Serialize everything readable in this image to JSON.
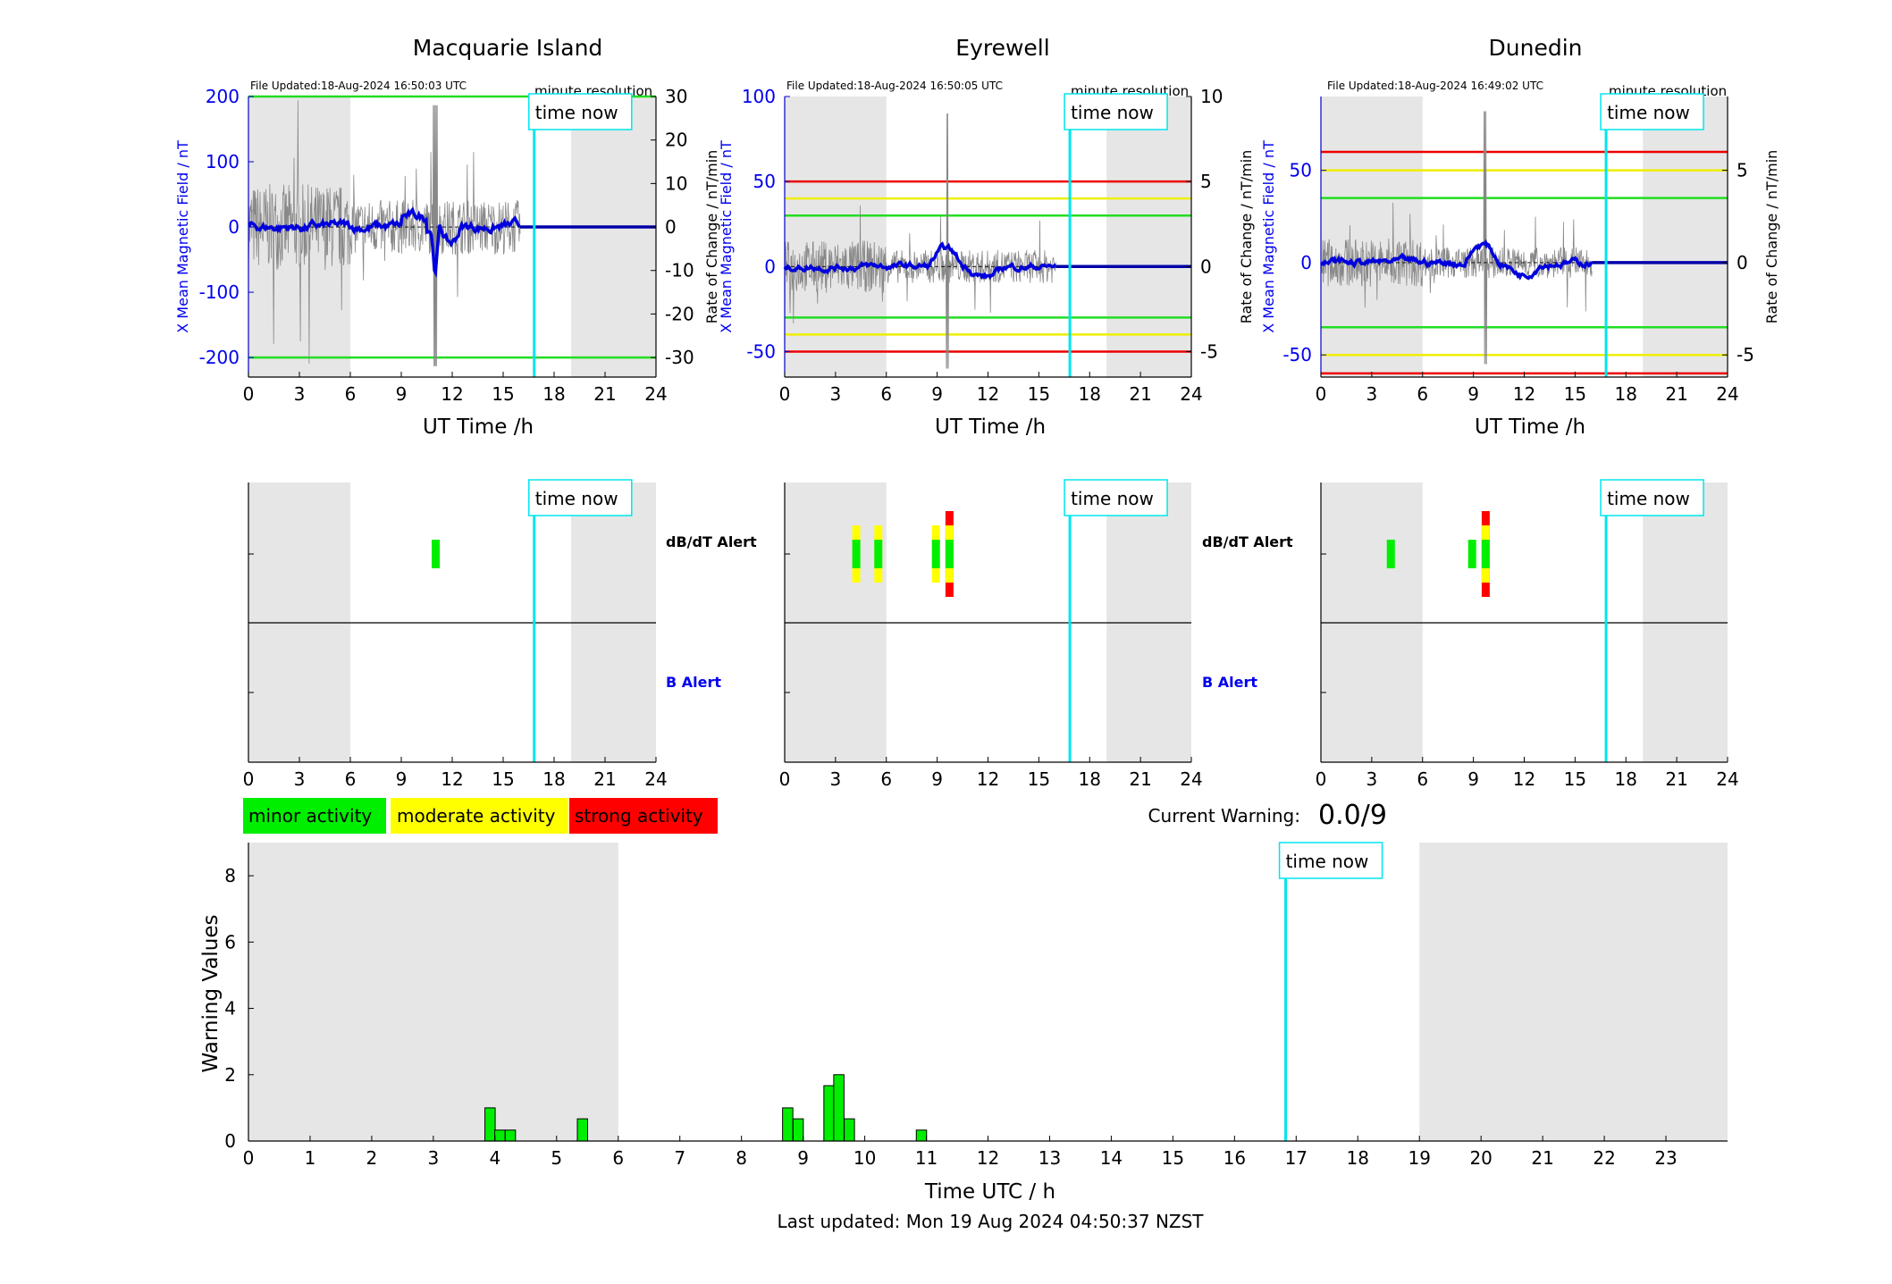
{
  "stations": [
    {
      "name": "Macquarie Island",
      "file_updated": "File Updated:18-Aug-2024 16:50:03 UTC",
      "resolution": "minute resolution",
      "left_ylabel": "X Mean Magnetic Field / nT",
      "right_ylabel": "Rate of Change / nT/min",
      "left_yticks": [
        "200",
        "100",
        "0",
        "-100",
        "-200"
      ],
      "right_yticks": [
        "30",
        "20",
        "10",
        "0",
        "-10",
        "-20",
        "-30"
      ],
      "left_ylim": [
        -230,
        200
      ],
      "right_ylim": [
        -34.5,
        30
      ],
      "thresholds": [
        {
          "value": 200,
          "color": "#22dd22"
        },
        {
          "value": -200,
          "color": "#22dd22"
        }
      ]
    },
    {
      "name": "Eyrewell",
      "file_updated": "File Updated:18-Aug-2024 16:50:05 UTC",
      "resolution": "minute resolution",
      "left_ylabel": "X Mean Magnetic Field / nT",
      "right_ylabel": "Rate of Change / nT/min",
      "left_yticks": [
        "100",
        "50",
        "0",
        "-50"
      ],
      "right_yticks": [
        "10",
        "5",
        "0",
        "-5"
      ],
      "left_ylim": [
        -65,
        100
      ],
      "right_ylim": [
        -6.5,
        10
      ],
      "thresholds": [
        {
          "value": 50,
          "color": "#ee0000"
        },
        {
          "value": 40,
          "color": "#eeee00"
        },
        {
          "value": 30,
          "color": "#22dd22"
        },
        {
          "value": -30,
          "color": "#22dd22"
        },
        {
          "value": -40,
          "color": "#eeee00"
        },
        {
          "value": -50,
          "color": "#ee0000"
        }
      ]
    },
    {
      "name": "Dunedin",
      "file_updated": "File Updated:18-Aug-2024 16:49:02 UTC",
      "resolution": "minute resolution",
      "left_ylabel": "X Mean Magnetic Field / nT",
      "right_ylabel": "Rate of Change / nT/min",
      "left_yticks": [
        "50",
        "0",
        "-50"
      ],
      "right_yticks": [
        "5",
        "0",
        "-5"
      ],
      "left_ylim": [
        -62,
        90
      ],
      "right_ylim": [
        -6.2,
        9
      ],
      "thresholds": [
        {
          "value": 60,
          "color": "#ee0000"
        },
        {
          "value": 50,
          "color": "#eeee00"
        },
        {
          "value": 35,
          "color": "#22dd22"
        },
        {
          "value": -35,
          "color": "#22dd22"
        },
        {
          "value": -50,
          "color": "#eeee00"
        },
        {
          "value": -60,
          "color": "#ee0000"
        }
      ]
    }
  ],
  "time_axis": {
    "label": "UT Time /h",
    "ticks": [
      "0",
      "3",
      "6",
      "9",
      "12",
      "15",
      "18",
      "21",
      "24"
    ],
    "xlim": [
      0,
      24
    ]
  },
  "time_now": {
    "label": "time now",
    "hour": 16.83
  },
  "night_shading": [
    [
      0,
      6
    ],
    [
      19,
      24
    ]
  ],
  "alert_panels": {
    "dbdt_label": "dB/dT Alert",
    "b_label": "B Alert",
    "stations": [
      {
        "bars": [
          {
            "hour": 11.0,
            "level": "minor"
          }
        ]
      },
      {
        "bars": [
          {
            "hour": 4.2,
            "level": "moderate"
          },
          {
            "hour": 5.5,
            "level": "moderate"
          },
          {
            "hour": 8.9,
            "level": "moderate"
          },
          {
            "hour": 9.7,
            "level": "strong"
          }
        ]
      },
      {
        "bars": [
          {
            "hour": 4.1,
            "level": "minor"
          },
          {
            "hour": 8.9,
            "level": "minor"
          },
          {
            "hour": 9.7,
            "level": "strong"
          }
        ]
      }
    ]
  },
  "legend": [
    {
      "label": "minor activity",
      "color": "#00ee00"
    },
    {
      "label": "moderate activity",
      "color": "#ffff00"
    },
    {
      "label": "strong activity",
      "color": "#ff0000"
    }
  ],
  "current_warning": {
    "label": "Current Warning:",
    "value": "0.0/9"
  },
  "chart_data": {
    "type": "bar",
    "ylabel": "Warning Values",
    "xlabel": "Time UTC / h",
    "xlim": [
      0,
      24
    ],
    "ylim": [
      0,
      9
    ],
    "xticks": [
      "0",
      "1",
      "2",
      "3",
      "4",
      "5",
      "6",
      "7",
      "8",
      "9",
      "10",
      "11",
      "12",
      "13",
      "14",
      "15",
      "16",
      "17",
      "18",
      "19",
      "20",
      "21",
      "22",
      "23"
    ],
    "yticks": [
      "0",
      "2",
      "4",
      "6",
      "8"
    ],
    "bar_width_h": 0.1667,
    "x": [
      3.92,
      4.08,
      4.25,
      5.42,
      8.75,
      8.92,
      9.42,
      9.58,
      9.75,
      10.92
    ],
    "values": [
      1.0,
      0.33,
      0.33,
      0.67,
      1.0,
      0.67,
      1.67,
      2.0,
      0.67,
      0.33
    ],
    "bar_color": "#00ee00"
  },
  "footer": {
    "last_updated": "Last updated: Mon 19 Aug 2024 04:50:37 NZST"
  },
  "colors": {
    "time_now": "#00e5ee",
    "mean_field": "#0000dd",
    "shade": "#e6e6e6",
    "axis_label_blue": "#0000ee"
  }
}
